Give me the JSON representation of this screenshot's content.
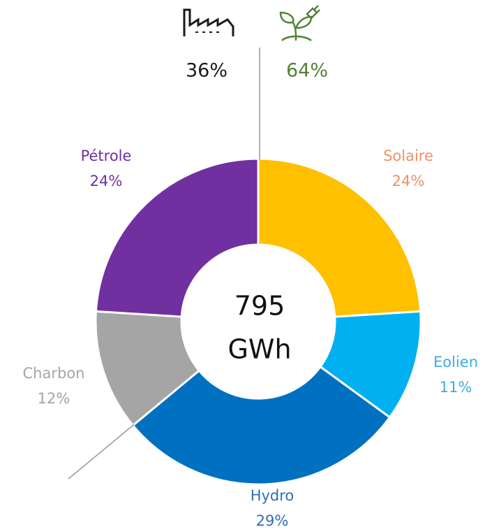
{
  "chart_data": {
    "type": "donut",
    "categories": [
      "Solaire",
      "Eolien",
      "Hydro",
      "Charbon",
      "Pétrole"
    ],
    "values": [
      24,
      11,
      29,
      12,
      24
    ],
    "value_labels": [
      "24%",
      "11%",
      "29%",
      "12%",
      "24%"
    ],
    "colors": [
      "#FFC000",
      "#00B0F0",
      "#0070C0",
      "#A5A5A5",
      "#7030A0"
    ],
    "label_colors": [
      "#F0906A",
      "#3AAEE0",
      "#2F6EB5",
      "#A5A5A5",
      "#7030A0"
    ],
    "center_text": [
      "795",
      "GWh"
    ],
    "groups": [
      {
        "value": 36,
        "value_label": "36%",
        "color": "#1a1a1a"
      },
      {
        "value": 64,
        "value_label": "64%",
        "color": "#548235"
      }
    ]
  }
}
